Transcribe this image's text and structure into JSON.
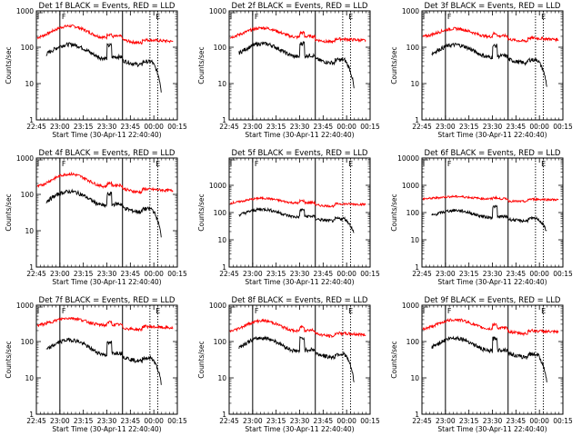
{
  "chart_data": [
    {
      "type": "line",
      "title": "Det 1f BLACK = Events, RED = LLD",
      "ylabel": "Counts/sec",
      "xlabel": "Start Time (30-Apr-11 22:40:40)",
      "x_ticks": [
        "22:45",
        "23:00",
        "23:15",
        "23:30",
        "23:45",
        "00:00",
        "00:15"
      ],
      "y_ticks": [
        "1",
        "10",
        "100",
        "1000"
      ],
      "ylim": [
        1,
        1000
      ],
      "y_scale": "log",
      "x_range_min": [
        0,
        36
      ],
      "markers": [
        {
          "label": "F",
          "x": 6
        },
        {
          "label": "E",
          "x": 30
        }
      ],
      "vlines": [
        {
          "x": 6,
          "style": "solid"
        },
        {
          "x": 22,
          "style": "solid"
        },
        {
          "x": 29,
          "style": "dotted"
        },
        {
          "x": 31,
          "style": "dotted"
        }
      ],
      "series": [
        {
          "color": "#ff0000",
          "base": 160,
          "hump": 2.4,
          "spike": 1.2,
          "end_drop": 0.9
        },
        {
          "color": "#000000",
          "base": 40,
          "hump": 3.0,
          "spike": 2.2,
          "end_drop": 0.12
        }
      ]
    },
    {
      "type": "line",
      "title": "Det 2f BLACK = Events, RED = LLD",
      "ylabel": "Counts/sec",
      "xlabel": "Start Time (30-Apr-11 22:40:40)",
      "x_ticks": [
        "22:45",
        "23:00",
        "23:15",
        "23:30",
        "23:45",
        "00:00",
        "00:15"
      ],
      "y_ticks": [
        "1",
        "10",
        "100",
        "1000"
      ],
      "ylim": [
        1,
        1000
      ],
      "y_scale": "log",
      "x_range_min": [
        0,
        36
      ],
      "markers": [
        {
          "label": "F",
          "x": 6
        },
        {
          "label": "E",
          "x": 30
        }
      ],
      "vlines": [
        {
          "x": 6,
          "style": "solid"
        },
        {
          "x": 22,
          "style": "solid"
        },
        {
          "x": 29,
          "style": "dotted"
        },
        {
          "x": 31,
          "style": "dotted"
        }
      ],
      "series": [
        {
          "color": "#ff0000",
          "base": 170,
          "hump": 2.0,
          "spike": 1.3,
          "end_drop": 0.9
        },
        {
          "color": "#000000",
          "base": 45,
          "hump": 2.8,
          "spike": 2.3,
          "end_drop": 0.12
        }
      ]
    },
    {
      "type": "line",
      "title": "Det 3f BLACK = Events, RED = LLD",
      "ylabel": "Counts/sec",
      "xlabel": "Start Time (30-Apr-11 22:40:40)",
      "x_ticks": [
        "22:45",
        "23:00",
        "23:15",
        "23:30",
        "23:45",
        "00:00",
        "00:15"
      ],
      "y_ticks": [
        "1",
        "10",
        "100",
        "1000"
      ],
      "ylim": [
        1,
        1000
      ],
      "y_scale": "log",
      "x_range_min": [
        0,
        36
      ],
      "markers": [
        {
          "label": "F",
          "x": 6
        },
        {
          "label": "E",
          "x": 30
        }
      ],
      "vlines": [
        {
          "x": 6,
          "style": "solid"
        },
        {
          "x": 22,
          "style": "solid"
        },
        {
          "x": 29,
          "style": "dotted"
        },
        {
          "x": 31,
          "style": "dotted"
        }
      ],
      "series": [
        {
          "color": "#ff0000",
          "base": 180,
          "hump": 1.8,
          "spike": 1.2,
          "end_drop": 0.9
        },
        {
          "color": "#000000",
          "base": 45,
          "hump": 2.6,
          "spike": 2.0,
          "end_drop": 0.15
        }
      ]
    },
    {
      "type": "line",
      "title": "Det 4f BLACK = Events, RED = LLD",
      "ylabel": "Counts/sec",
      "xlabel": "Start Time (30-Apr-11 22:40:40)",
      "x_ticks": [
        "22:45",
        "23:00",
        "23:15",
        "23:30",
        "23:45",
        "00:00",
        "00:15"
      ],
      "y_ticks": [
        "1",
        "10",
        "100",
        "1000"
      ],
      "ylim": [
        1,
        1000
      ],
      "y_scale": "log",
      "x_range_min": [
        0,
        36
      ],
      "markers": [
        {
          "label": "F",
          "x": 6
        },
        {
          "label": "E",
          "x": 30
        }
      ],
      "vlines": [
        {
          "x": 6,
          "style": "solid"
        },
        {
          "x": 22,
          "style": "solid"
        },
        {
          "x": 29,
          "style": "dotted"
        },
        {
          "x": 31,
          "style": "dotted"
        }
      ],
      "series": [
        {
          "color": "#ff0000",
          "base": 140,
          "hump": 2.6,
          "spike": 1.2,
          "end_drop": 0.9
        },
        {
          "color": "#000000",
          "base": 40,
          "hump": 3.0,
          "spike": 2.0,
          "end_drop": 0.12
        }
      ]
    },
    {
      "type": "line",
      "title": "Det 5f BLACK = Events, RED = LLD",
      "ylabel": "Counts/sec",
      "xlabel": "Start Time (30-Apr-11 22:40:40)",
      "x_ticks": [
        "22:45",
        "23:00",
        "23:15",
        "23:30",
        "23:45",
        "00:00",
        "00:15"
      ],
      "y_ticks": [
        "1",
        "10",
        "100",
        "1000"
      ],
      "ylim": [
        1,
        10000
      ],
      "y_scale": "log",
      "x_range_min": [
        0,
        36
      ],
      "markers": [
        {
          "label": "F",
          "x": 6
        },
        {
          "label": "E",
          "x": 30
        }
      ],
      "vlines": [
        {
          "x": 6,
          "style": "solid"
        },
        {
          "x": 22,
          "style": "solid"
        },
        {
          "x": 29,
          "style": "dotted"
        },
        {
          "x": 31,
          "style": "dotted"
        }
      ],
      "series": [
        {
          "color": "#ff0000",
          "base": 210,
          "hump": 1.6,
          "spike": 1.2,
          "end_drop": 0.95
        },
        {
          "color": "#000000",
          "base": 60,
          "hump": 2.2,
          "spike": 1.8,
          "end_drop": 0.25
        }
      ]
    },
    {
      "type": "line",
      "title": "Det 6f BLACK = Events, RED = LLD",
      "ylabel": "Counts/sec",
      "xlabel": "Start Time (30-Apr-11 22:40:40)",
      "x_ticks": [
        "22:45",
        "23:00",
        "23:15",
        "23:30",
        "23:45",
        "00:00",
        "00:15"
      ],
      "y_ticks": [
        "1",
        "10",
        "100",
        "1000",
        "10000"
      ],
      "ylim": [
        1,
        10000
      ],
      "y_scale": "log",
      "x_range_min": [
        0,
        36
      ],
      "markers": [
        {
          "label": "F",
          "x": 6
        },
        {
          "label": "E",
          "x": 30
        }
      ],
      "vlines": [
        {
          "x": 6,
          "style": "solid"
        },
        {
          "x": 22,
          "style": "solid"
        },
        {
          "x": 29,
          "style": "dotted"
        },
        {
          "x": 31,
          "style": "dotted"
        }
      ],
      "series": [
        {
          "color": "#ff0000",
          "base": 310,
          "hump": 1.25,
          "spike": 1.1,
          "end_drop": 0.95
        },
        {
          "color": "#000000",
          "base": 60,
          "hump": 2.0,
          "spike": 2.4,
          "end_drop": 0.3
        }
      ]
    },
    {
      "type": "line",
      "title": "Det 7f BLACK = Events, RED = LLD",
      "ylabel": "Counts/sec",
      "xlabel": "Start Time (30-Apr-11 22:40:40)",
      "x_ticks": [
        "22:45",
        "23:00",
        "23:15",
        "23:30",
        "23:45",
        "00:00",
        "00:15"
      ],
      "y_ticks": [
        "1",
        "10",
        "100",
        "1000"
      ],
      "ylim": [
        1,
        1000
      ],
      "y_scale": "log",
      "x_range_min": [
        0,
        36
      ],
      "markers": [
        {
          "label": "F",
          "x": 6
        },
        {
          "label": "E",
          "x": 30
        }
      ],
      "vlines": [
        {
          "x": 6,
          "style": "solid"
        },
        {
          "x": 22,
          "style": "solid"
        },
        {
          "x": 29,
          "style": "dotted"
        },
        {
          "x": 31,
          "style": "dotted"
        }
      ],
      "series": [
        {
          "color": "#ff0000",
          "base": 260,
          "hump": 1.7,
          "spike": 1.2,
          "end_drop": 0.9
        },
        {
          "color": "#000000",
          "base": 35,
          "hump": 3.2,
          "spike": 2.0,
          "end_drop": 0.15
        }
      ]
    },
    {
      "type": "line",
      "title": "Det 8f BLACK = Events, RED = LLD",
      "ylabel": "Counts/sec",
      "xlabel": "Start Time (30-Apr-11 22:40:40)",
      "x_ticks": [
        "22:45",
        "23:00",
        "23:15",
        "23:30",
        "23:45",
        "00:00",
        "00:15"
      ],
      "y_ticks": [
        "1",
        "10",
        "100",
        "1000"
      ],
      "ylim": [
        1,
        1000
      ],
      "y_scale": "log",
      "x_range_min": [
        0,
        36
      ],
      "markers": [
        {
          "label": "F",
          "x": 6
        },
        {
          "label": "E",
          "x": 30
        }
      ],
      "vlines": [
        {
          "x": 6,
          "style": "solid"
        },
        {
          "x": 22,
          "style": "solid"
        },
        {
          "x": 29,
          "style": "dotted"
        },
        {
          "x": 31,
          "style": "dotted"
        }
      ],
      "series": [
        {
          "color": "#ff0000",
          "base": 170,
          "hump": 2.2,
          "spike": 1.3,
          "end_drop": 0.9
        },
        {
          "color": "#000000",
          "base": 45,
          "hump": 2.8,
          "spike": 2.2,
          "end_drop": 0.12
        }
      ]
    },
    {
      "type": "line",
      "title": "Det 9f BLACK = Events, RED = LLD",
      "ylabel": "Counts/sec",
      "xlabel": "Start Time (30-Apr-11 22:40:40)",
      "x_ticks": [
        "22:45",
        "23:00",
        "23:15",
        "23:30",
        "23:45",
        "00:00",
        "00:15"
      ],
      "y_ticks": [
        "1",
        "10",
        "100",
        "1000"
      ],
      "ylim": [
        1,
        1000
      ],
      "y_scale": "log",
      "x_range_min": [
        0,
        36
      ],
      "markers": [
        {
          "label": "F",
          "x": 6
        },
        {
          "label": "E",
          "x": 30
        }
      ],
      "vlines": [
        {
          "x": 6,
          "style": "solid"
        },
        {
          "x": 22,
          "style": "solid"
        },
        {
          "x": 29,
          "style": "dotted"
        },
        {
          "x": 31,
          "style": "dotted"
        }
      ],
      "series": [
        {
          "color": "#ff0000",
          "base": 200,
          "hump": 2.0,
          "spike": 1.3,
          "end_drop": 0.9
        },
        {
          "color": "#000000",
          "base": 45,
          "hump": 2.8,
          "spike": 2.2,
          "end_drop": 0.12
        }
      ]
    }
  ]
}
